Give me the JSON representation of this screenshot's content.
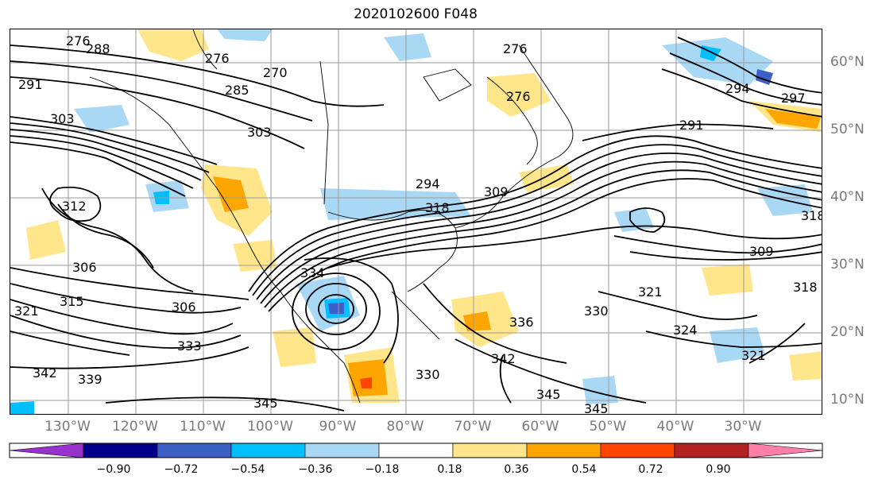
{
  "title": "2020102600 F048",
  "map": {
    "longitude_labels": [
      "130°W",
      "120°W",
      "110°W",
      "100°W",
      "90°W",
      "80°W",
      "70°W",
      "60°W",
      "50°W",
      "40°W",
      "30°W"
    ],
    "latitude_labels": [
      "60°N",
      "50°N",
      "40°N",
      "30°N",
      "20°N",
      "10°N"
    ],
    "contour_labels": [
      "276",
      "288",
      "276",
      "270",
      "285",
      "303",
      "276",
      "276",
      "291",
      "294",
      "297",
      "291",
      "294",
      "303",
      "312",
      "306",
      "315",
      "321",
      "306",
      "333",
      "342",
      "339",
      "345",
      "345",
      "336",
      "330",
      "321",
      "324",
      "321",
      "318",
      "342",
      "345",
      "330",
      "309",
      "318",
      "334",
      "318",
      "309"
    ],
    "shading_colors": {
      "light_blue": "#a9d8f5",
      "cyan": "#00bfff",
      "blue": "#3c5fc8",
      "yellow": "#ffe68a",
      "orange": "#ffa500",
      "red_orange": "#ff4500",
      "dark_red": "#b22222"
    }
  },
  "colorbar": {
    "colors": [
      "#9932cc",
      "#00008b",
      "#3c5fc8",
      "#00bfff",
      "#a9d8f5",
      "#ffffff",
      "#ffe68a",
      "#ffa500",
      "#ff4500",
      "#b22222",
      "#ff7fa8"
    ],
    "tick_labels": [
      "−0.90",
      "−0.72",
      "−0.54",
      "−0.36",
      "−0.18",
      "0.18",
      "0.36",
      "0.54",
      "0.72",
      "0.90"
    ]
  }
}
